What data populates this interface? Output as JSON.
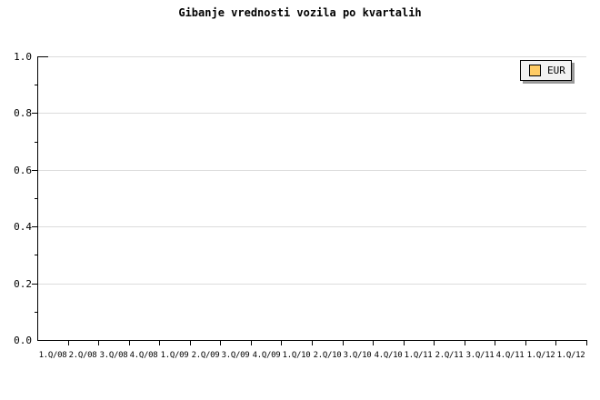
{
  "legend": {
    "series_label": "EUR",
    "swatch_color": "#FFCC66"
  },
  "colors": {
    "background": "#FFFFFF",
    "axis": "#000000",
    "gridline": "#DCDCDC",
    "text": "#000000",
    "legend_bg": "#F2F2F2",
    "legend_border": "#000000",
    "legend_shadow": "#9A9A9A"
  },
  "chart_data": {
    "type": "line",
    "title": "Gibanje vrednosti vozila po kvartalih",
    "xlabel": "",
    "ylabel": "",
    "categories": [
      "1.Q/08",
      "2.Q/08",
      "3.Q/08",
      "4.Q/08",
      "1.Q/09",
      "2.Q/09",
      "3.Q/09",
      "4.Q/09",
      "1.Q/10",
      "2.Q/10",
      "3.Q/10",
      "4.Q/10",
      "1.Q/11",
      "2.Q/11",
      "3.Q/11",
      "4.Q/11",
      "1.Q/12",
      "1.Q/12"
    ],
    "series": [
      {
        "name": "EUR",
        "color": "#FFCC66",
        "values": []
      }
    ],
    "ylim": [
      0.0,
      1.0
    ],
    "yticks": [
      0.0,
      0.2,
      0.4,
      0.6,
      0.8,
      1.0
    ],
    "ytick_labels": [
      "0.0",
      "0.2",
      "0.4",
      "0.6",
      "0.8",
      "1.0"
    ],
    "minor_yticks": [
      0.1,
      0.3,
      0.5,
      0.7,
      0.9
    ],
    "grid": "horizontal",
    "legend_position": "top-right"
  }
}
